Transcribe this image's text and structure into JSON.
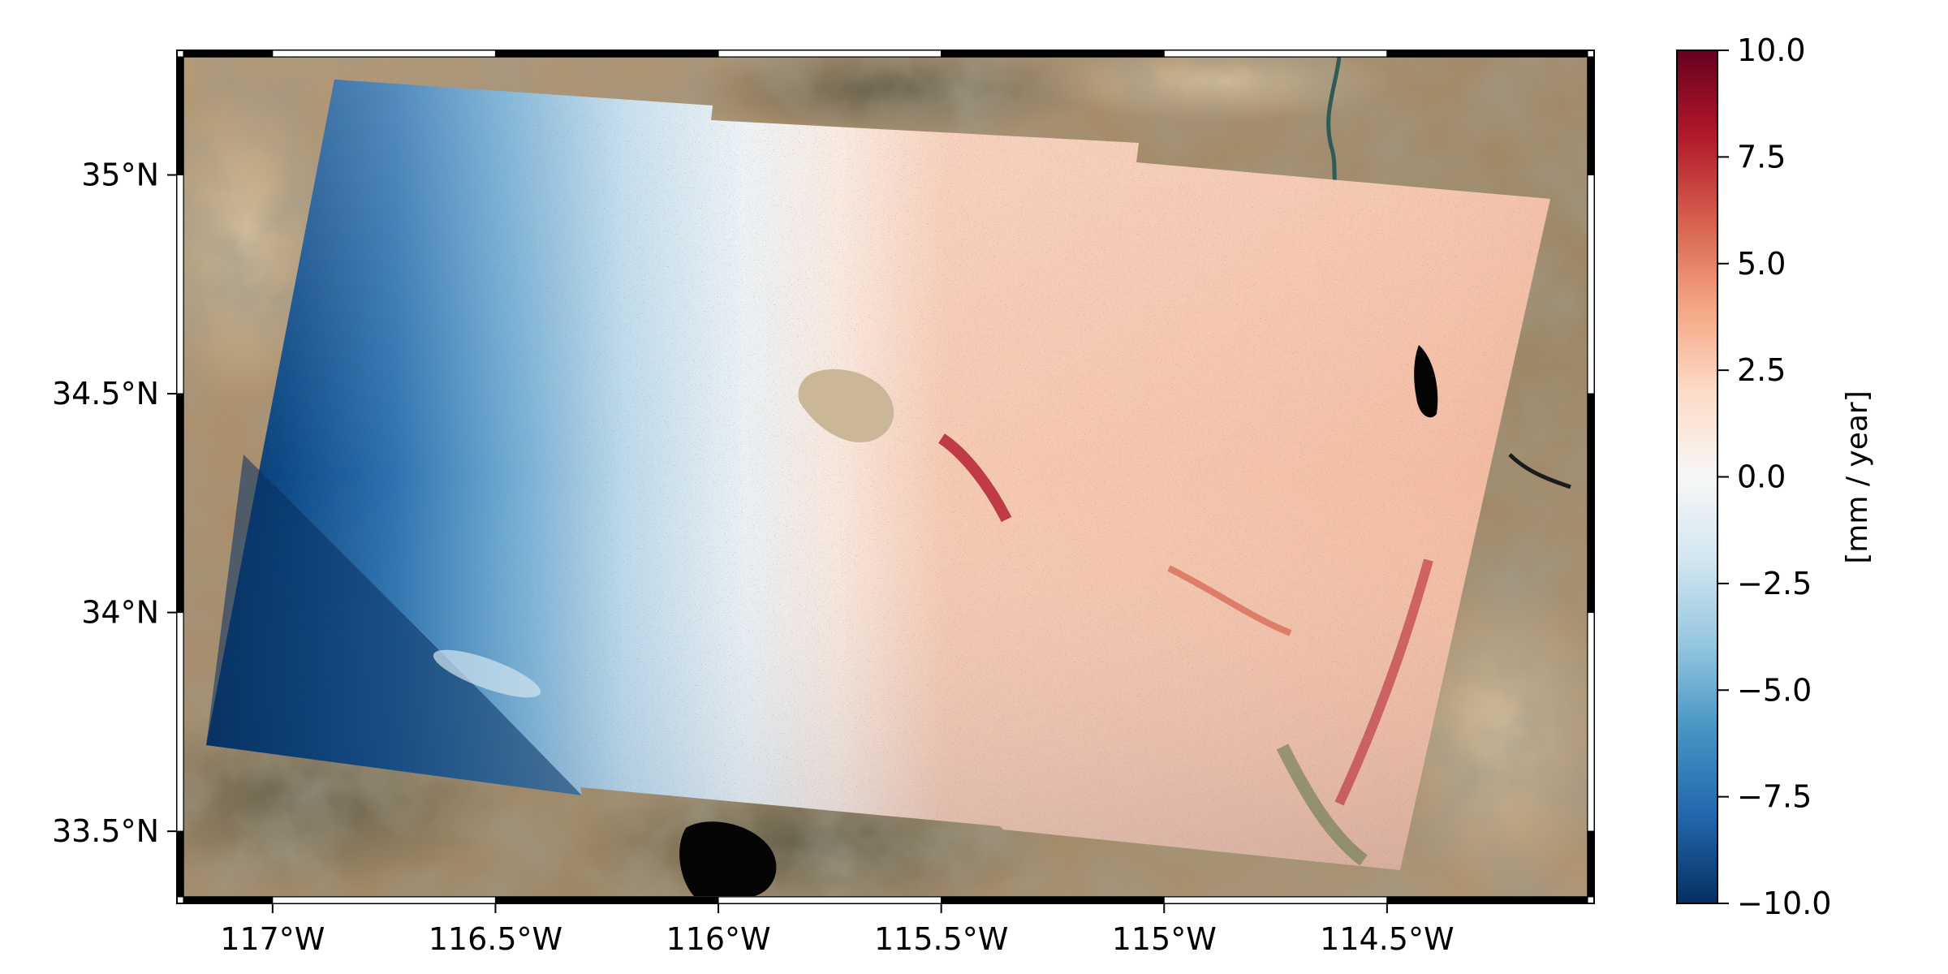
{
  "map": {
    "basemap": "satellite-imagery",
    "overlay": "insar-velocity-field",
    "lon_range": [
      -117.2,
      -114.05
    ],
    "lat_range": [
      33.35,
      35.27
    ],
    "x_ticks": [
      {
        "value": -117.0,
        "label": "117°W"
      },
      {
        "value": -116.5,
        "label": "116.5°W"
      },
      {
        "value": -116.0,
        "label": "116°W"
      },
      {
        "value": -115.5,
        "label": "115.5°W"
      },
      {
        "value": -115.0,
        "label": "115°W"
      },
      {
        "value": -114.5,
        "label": "114.5°W"
      }
    ],
    "y_ticks": [
      {
        "value": 35.0,
        "label": "35°N"
      },
      {
        "value": 34.5,
        "label": "34.5°N"
      },
      {
        "value": 34.0,
        "label": "34°N"
      },
      {
        "value": 33.5,
        "label": "33.5°N"
      }
    ],
    "frame": "alternating-black-white-border"
  },
  "colorbar": {
    "label": "[mm / year]",
    "colormap": "RdBu_r",
    "range": [
      -10.0,
      10.0
    ],
    "ticks": [
      {
        "value": 10.0,
        "label": "10.0"
      },
      {
        "value": 7.5,
        "label": "7.5"
      },
      {
        "value": 5.0,
        "label": "5.0"
      },
      {
        "value": 2.5,
        "label": "2.5"
      },
      {
        "value": 0.0,
        "label": "0.0"
      },
      {
        "value": -2.5,
        "label": "−2.5"
      },
      {
        "value": -5.0,
        "label": "−5.0"
      },
      {
        "value": -7.5,
        "label": "−7.5"
      },
      {
        "value": -10.0,
        "label": "−10.0"
      }
    ],
    "colors": [
      "#053061",
      "#2166ac",
      "#4393c3",
      "#92c5de",
      "#d1e5f0",
      "#f7f7f7",
      "#fddbc7",
      "#f4a582",
      "#d6604d",
      "#b2182b",
      "#67001f"
    ]
  }
}
